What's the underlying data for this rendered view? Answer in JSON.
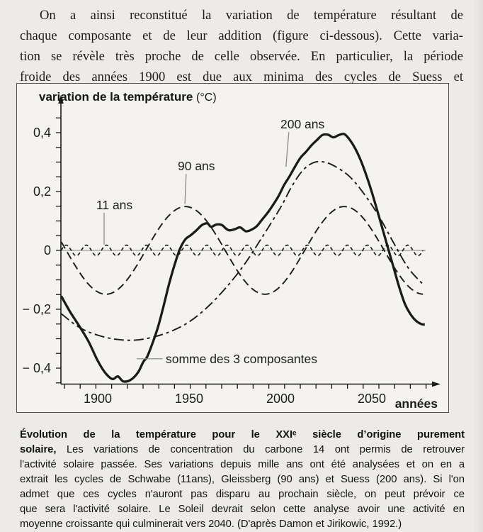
{
  "page": {
    "bg_color": "#edebe7",
    "figure_bg_color": "#f4f3ef",
    "ink_color": "#1a1a1a",
    "pointer_line_color": "#8c8c8c"
  },
  "intro_paragraph": {
    "lines": [
      "On a ainsi reconstitué la variation de température résultant de",
      "chaque composante et de leur addition (figure ci-dessous). Cette varia-",
      "tion se révèle très proche de celle observée. En particulier, la période",
      "froide des années 1900 est due aux minima des cycles de Suess et"
    ]
  },
  "figure": {
    "title_bold": "variation de la température",
    "title_unit": "(°C)"
  },
  "chart_data": {
    "type": "line",
    "title": "variation de la température (°C)",
    "xlabel": "années",
    "ylabel": "variation de la température (°C)",
    "xlim": [
      1876,
      2090
    ],
    "ylim": [
      -0.46,
      0.47
    ],
    "grid": false,
    "zero_line": true,
    "legend_position": "inline-annotations",
    "x_tick_labels": [
      {
        "t": "1900",
        "year": 1900
      },
      {
        "t": "1950",
        "year": 1950
      },
      {
        "t": "2000",
        "year": 2000
      },
      {
        "t": "2050",
        "year": 2050
      }
    ],
    "y_tick_labels": [
      {
        "t": "0,4",
        "v": 0.4
      },
      {
        "t": "0,2",
        "v": 0.2
      },
      {
        "t": "0",
        "v": 0
      },
      {
        "t": "− 0,2",
        "v": -0.2
      },
      {
        "t": "− 0,4",
        "v": -0.4
      }
    ],
    "series": [
      {
        "name": "cycle de Schwabe (11 ans)",
        "label": "11 ans",
        "style": "fine-dash",
        "dash": "5 3.5",
        "width": 1.6,
        "generator": {
          "kind": "sin",
          "amplitude": 0.018,
          "period": 11,
          "ref_year": 1880,
          "start": 1880,
          "end": 2078,
          "step": 0.55
        }
      },
      {
        "name": "cycle de Gleissberg (90 ans)",
        "label": "90 ans",
        "style": "dash",
        "dash": "11 6",
        "width": 1.9,
        "generator": {
          "kind": "cos",
          "amplitude": 0.149,
          "period": 87,
          "ref_year": 1948,
          "start": 1880,
          "end": 2078,
          "step": 1.5
        }
      },
      {
        "name": "cycle de Suess (200 ans)",
        "label": "200 ans",
        "style": "dash-dot",
        "dash": "14 5 4 5",
        "width": 1.9,
        "points": [
          [
            1880,
            -0.215
          ],
          [
            1890,
            -0.262
          ],
          [
            1900,
            -0.288
          ],
          [
            1910,
            -0.302
          ],
          [
            1920,
            -0.305
          ],
          [
            1930,
            -0.295
          ],
          [
            1940,
            -0.275
          ],
          [
            1950,
            -0.243
          ],
          [
            1960,
            -0.193
          ],
          [
            1970,
            -0.128
          ],
          [
            1980,
            -0.05
          ],
          [
            1990,
            0.045
          ],
          [
            2000,
            0.145
          ],
          [
            2006,
            0.215
          ],
          [
            2012,
            0.27
          ],
          [
            2018,
            0.298
          ],
          [
            2024,
            0.3
          ],
          [
            2030,
            0.285
          ],
          [
            2038,
            0.25
          ],
          [
            2046,
            0.19
          ],
          [
            2054,
            0.115
          ],
          [
            2062,
            0.025
          ],
          [
            2070,
            -0.06
          ],
          [
            2078,
            -0.115
          ]
        ]
      },
      {
        "name": "somme des 3 composantes",
        "label": "somme des 3 composantes",
        "style": "solid",
        "dash": "",
        "width": 3.3,
        "points": [
          [
            1880,
            -0.155
          ],
          [
            1885,
            -0.21
          ],
          [
            1890,
            -0.258
          ],
          [
            1895,
            -0.31
          ],
          [
            1900,
            -0.375
          ],
          [
            1904,
            -0.415
          ],
          [
            1908,
            -0.437
          ],
          [
            1911,
            -0.428
          ],
          [
            1914,
            -0.445
          ],
          [
            1918,
            -0.44
          ],
          [
            1922,
            -0.415
          ],
          [
            1925,
            -0.378
          ],
          [
            1927,
            -0.362
          ],
          [
            1930,
            -0.315
          ],
          [
            1933,
            -0.26
          ],
          [
            1936,
            -0.19
          ],
          [
            1939,
            -0.115
          ],
          [
            1942,
            -0.05
          ],
          [
            1945,
            0.005
          ],
          [
            1948,
            0.038
          ],
          [
            1951,
            0.052
          ],
          [
            1954,
            0.068
          ],
          [
            1957,
            0.086
          ],
          [
            1960,
            0.092
          ],
          [
            1962,
            0.08
          ],
          [
            1965,
            0.088
          ],
          [
            1968,
            0.086
          ],
          [
            1970,
            0.075
          ],
          [
            1972,
            0.068
          ],
          [
            1975,
            0.072
          ],
          [
            1978,
            0.078
          ],
          [
            1981,
            0.065
          ],
          [
            1984,
            0.07
          ],
          [
            1987,
            0.082
          ],
          [
            1990,
            0.105
          ],
          [
            1993,
            0.128
          ],
          [
            1996,
            0.155
          ],
          [
            1999,
            0.185
          ],
          [
            2002,
            0.222
          ],
          [
            2005,
            0.252
          ],
          [
            2008,
            0.285
          ],
          [
            2011,
            0.315
          ],
          [
            2014,
            0.335
          ],
          [
            2017,
            0.357
          ],
          [
            2020,
            0.375
          ],
          [
            2023,
            0.392
          ],
          [
            2026,
            0.393
          ],
          [
            2029,
            0.384
          ],
          [
            2032,
            0.392
          ],
          [
            2035,
            0.395
          ],
          [
            2038,
            0.375
          ],
          [
            2041,
            0.345
          ],
          [
            2044,
            0.305
          ],
          [
            2047,
            0.255
          ],
          [
            2050,
            0.198
          ],
          [
            2053,
            0.135
          ],
          [
            2056,
            0.07
          ],
          [
            2059,
            0.005
          ],
          [
            2062,
            -0.06
          ],
          [
            2065,
            -0.125
          ],
          [
            2068,
            -0.18
          ],
          [
            2071,
            -0.215
          ],
          [
            2074,
            -0.238
          ],
          [
            2077,
            -0.25
          ],
          [
            2079,
            -0.252
          ]
        ]
      }
    ],
    "annotations": [
      {
        "text": "11 ans",
        "x_year": 1899.2,
        "y_value": 0.14,
        "pointer": [
          [
            1903.5,
            0.128
          ],
          [
            1903.5,
            0.02
          ]
        ]
      },
      {
        "text": "90 ans",
        "x_year": 1943.8,
        "y_value": 0.272,
        "pointer": [
          [
            1948.4,
            0.26
          ],
          [
            1947.7,
            0.158
          ]
        ]
      },
      {
        "text": "200 ans",
        "x_year": 2000.0,
        "y_value": 0.414,
        "pointer": [
          [
            2004.6,
            0.402
          ],
          [
            2003.0,
            0.284
          ]
        ]
      },
      {
        "text": "somme des 3 composantes",
        "x_year": 1937.2,
        "y_value": -0.383,
        "pointer": [
          [
            1935.5,
            -0.368
          ],
          [
            1921.3,
            -0.368
          ]
        ]
      }
    ]
  },
  "caption": {
    "lines": [
      {
        "b": "Évolution de la température pour le XXIᵉ siècle d’origine purement",
        "r": ""
      },
      {
        "b": "solaire,",
        "r": " Les variations de concentration du carbone 14 ont permis de retrouver"
      },
      {
        "b": "",
        "r": "l'activité solaire passée. Ses variations depuis mille ans ont été analysées et on en a"
      },
      {
        "b": "",
        "r": "extrait les cycles de Schwabe (11ans), Gleissberg (90 ans) et Suess (200 ans). Si l'on"
      },
      {
        "b": "",
        "r": "admet que ces cycles n'auront pas disparu au prochain siècle, on peut prévoir ce"
      },
      {
        "b": "",
        "r": "que sera l'activité solaire. Le Soleil devrait selon cette analyse avoir une activité en"
      },
      {
        "b": "",
        "r": "moyenne croissante qui culminerait vers 2040. (D'après Damon et Jirikowic, 1992.)"
      }
    ]
  }
}
